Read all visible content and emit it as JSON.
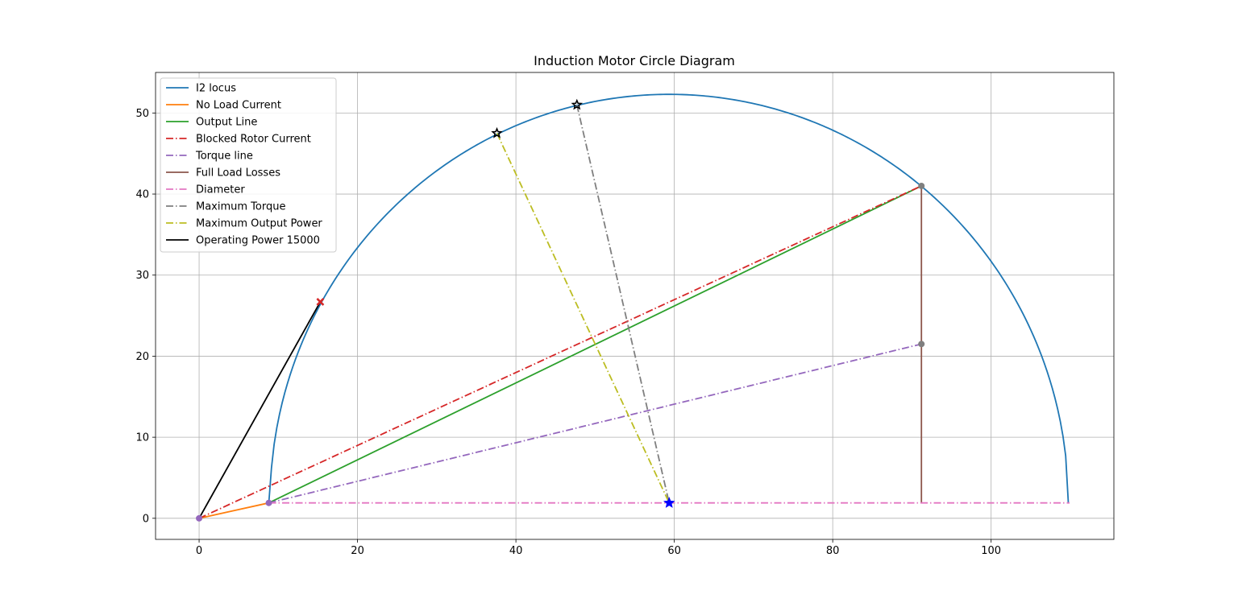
{
  "chart_data": {
    "type": "line",
    "title": "Induction Motor Circle Diagram",
    "xlabel": "",
    "ylabel": "",
    "xlim": [
      -5.5,
      115.5
    ],
    "ylim": [
      -2.6,
      55
    ],
    "xticks": [
      0,
      20,
      40,
      60,
      80,
      100
    ],
    "yticks": [
      0,
      10,
      20,
      30,
      40,
      50
    ],
    "grid": true,
    "legend_position": "top-left",
    "circle": {
      "center": [
        59.35,
        1.9
      ],
      "radius": 50.4
    },
    "series": [
      {
        "name": "I2 locus",
        "color": "#1f77b4",
        "style": "solid",
        "kind": "arc"
      },
      {
        "name": "No Load Current",
        "color": "#ff7f0e",
        "style": "solid",
        "x": [
          0,
          8.8
        ],
        "y": [
          0,
          1.9
        ]
      },
      {
        "name": "Output Line",
        "color": "#2ca02c",
        "style": "solid",
        "x": [
          8.8,
          91.2
        ],
        "y": [
          1.9,
          41.0
        ]
      },
      {
        "name": "Blocked Rotor Current",
        "color": "#d62728",
        "style": "dashdot",
        "x": [
          0,
          91.2
        ],
        "y": [
          0,
          41.0
        ]
      },
      {
        "name": "Torque line",
        "color": "#9467bd",
        "style": "dashdot",
        "x": [
          8.8,
          91.2
        ],
        "y": [
          1.9,
          21.5
        ]
      },
      {
        "name": "Full Load Losses",
        "color": "#8c564b",
        "style": "solid",
        "x": [
          91.2,
          91.2
        ],
        "y": [
          1.9,
          41.0
        ]
      },
      {
        "name": "Diameter",
        "color": "#e377c2",
        "style": "dashdot",
        "x": [
          8.8,
          109.9
        ],
        "y": [
          1.9,
          1.9
        ]
      },
      {
        "name": "Maximum Torque",
        "color": "#7f7f7f",
        "style": "dashdot",
        "x": [
          47.7,
          59.35
        ],
        "y": [
          51.0,
          1.9
        ]
      },
      {
        "name": "Maximum Output Power",
        "color": "#bcbd22",
        "style": "dashdot",
        "x": [
          37.6,
          59.35
        ],
        "y": [
          47.5,
          1.9
        ]
      },
      {
        "name": "Operating Power 15000",
        "color": "#000000",
        "style": "solid",
        "x": [
          0,
          15.3
        ],
        "y": [
          0,
          26.7
        ]
      }
    ],
    "markers": [
      {
        "x": 0,
        "y": 0,
        "color": "#9467bd",
        "shape": "circle"
      },
      {
        "x": 8.8,
        "y": 1.9,
        "color": "#9467bd",
        "shape": "circle"
      },
      {
        "x": 91.2,
        "y": 41.0,
        "color": "#7f7f7f",
        "shape": "circle"
      },
      {
        "x": 91.2,
        "y": 21.5,
        "color": "#7f7f7f",
        "shape": "circle"
      },
      {
        "x": 47.7,
        "y": 51.0,
        "color": "#000000",
        "shape": "star"
      },
      {
        "x": 37.6,
        "y": 47.5,
        "color": "#000000",
        "shape": "star"
      },
      {
        "x": 59.35,
        "y": 1.9,
        "color": "#0000ff",
        "shape": "star"
      },
      {
        "x": 15.3,
        "y": 26.7,
        "color": "#d62728",
        "shape": "x"
      }
    ]
  }
}
